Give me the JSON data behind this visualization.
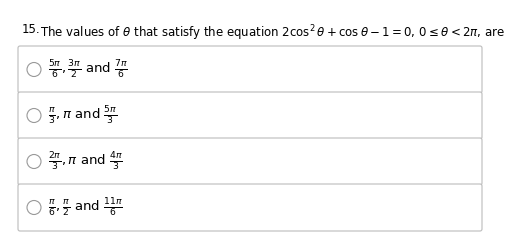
{
  "title_num": "15.",
  "title_text": "The values of $\\theta$ that satisfy the equation $2\\cos^2\\theta + \\cos\\theta - 1 = 0,\\, 0 \\leq \\theta < 2\\pi$, are",
  "options": [
    "$\\frac{5\\pi}{6}, \\frac{3\\pi}{2}$ and $\\frac{7\\pi}{6}$",
    "$\\frac{\\pi}{3}, \\pi$ and $\\frac{5\\pi}{3}$",
    "$\\frac{2\\pi}{3}, \\pi$ and $\\frac{4\\pi}{3}$",
    "$\\frac{\\pi}{6}, \\frac{\\pi}{2}$ and $\\frac{11\\pi}{6}$"
  ],
  "bg_color": "#ffffff",
  "box_edge_color": "#bbbbbb",
  "text_color": "#000000",
  "title_fontsize": 8.5,
  "option_fontsize": 9.5,
  "circle_edge_color": "#999999"
}
